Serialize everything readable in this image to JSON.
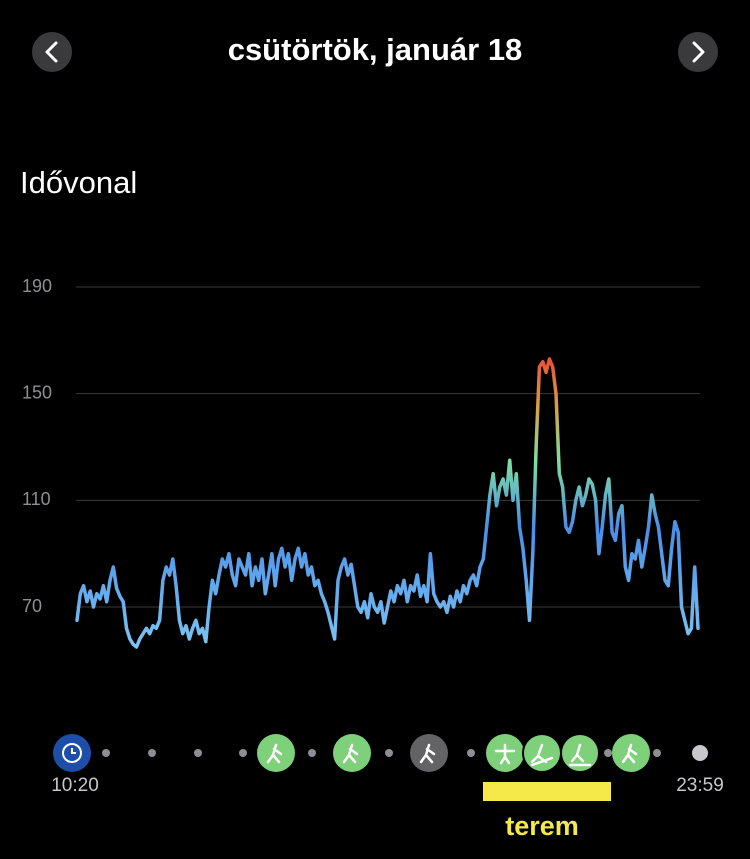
{
  "header": {
    "title": "csütörtök, január 18"
  },
  "section": {
    "title": "Idővonal"
  },
  "chart_data": {
    "type": "line",
    "values": [
      65,
      75,
      78,
      72,
      76,
      70,
      75,
      73,
      78,
      72,
      80,
      85,
      77,
      74,
      72,
      62,
      58,
      56,
      55,
      58,
      60,
      62,
      60,
      63,
      62,
      65,
      80,
      85,
      82,
      88,
      78,
      65,
      60,
      63,
      58,
      62,
      65,
      60,
      62,
      57,
      70,
      80,
      75,
      82,
      88,
      85,
      90,
      82,
      78,
      88,
      85,
      82,
      90,
      78,
      85,
      80,
      88,
      75,
      82,
      90,
      78,
      88,
      92,
      85,
      90,
      80,
      88,
      92,
      85,
      90,
      82,
      85,
      78,
      80,
      75,
      72,
      68,
      63,
      58,
      80,
      85,
      88,
      82,
      86,
      78,
      70,
      68,
      72,
      66,
      75,
      70,
      68,
      72,
      64,
      70,
      76,
      72,
      78,
      75,
      80,
      72,
      78,
      76,
      82,
      74,
      78,
      72,
      90,
      75,
      72,
      70,
      72,
      68,
      74,
      70,
      76,
      72,
      78,
      75,
      80,
      82,
      78,
      85,
      88,
      100,
      112,
      120,
      108,
      115,
      118,
      112,
      125,
      110,
      120,
      100,
      92,
      80,
      65,
      90,
      130,
      160,
      162,
      158,
      163,
      160,
      150,
      120,
      115,
      100,
      98,
      102,
      110,
      115,
      108,
      112,
      118,
      116,
      110,
      90,
      100,
      112,
      118,
      98,
      95,
      105,
      108,
      85,
      80,
      90,
      88,
      95,
      85,
      92,
      100,
      112,
      105,
      100,
      90,
      80,
      78,
      92,
      102,
      98,
      70,
      65,
      60,
      62,
      85,
      62
    ],
    "ylim": [
      40,
      190
    ],
    "yticks": [
      190,
      150,
      110,
      70
    ],
    "grid": true,
    "gradient": [
      {
        "value": 55,
        "color": "#7cc4f2"
      },
      {
        "value": 100,
        "color": "#4a8ee8"
      },
      {
        "value": 125,
        "color": "#7ee0a0"
      },
      {
        "value": 145,
        "color": "#d8a040"
      },
      {
        "value": 162,
        "color": "#e8553a"
      }
    ]
  },
  "timeline": {
    "start": "10:20",
    "end": "23:59",
    "annotation": "terem"
  }
}
